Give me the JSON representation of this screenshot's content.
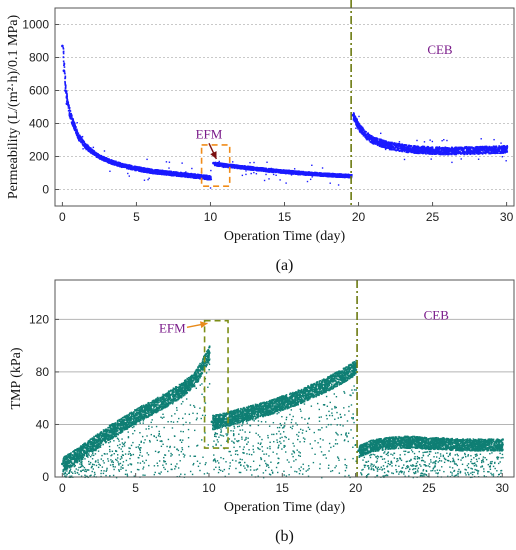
{
  "chart_data": [
    {
      "type": "scatter",
      "panel_label": "(a)",
      "xlabel": "Operation Time (day)",
      "ylabel": "Permeability (L/(m²·h)/0.1 MPa)",
      "xlim": [
        -0.5,
        30.5
      ],
      "ylim": [
        -100,
        1100
      ],
      "xticks": [
        0,
        5,
        10,
        15,
        20,
        25,
        30
      ],
      "yticks": [
        0,
        200,
        400,
        600,
        800,
        1000
      ],
      "grid": "horizontal dotted",
      "color": "#1a1aff",
      "series": [
        {
          "x": [
            0,
            0.1,
            0.2,
            0.3,
            0.5,
            0.8,
            1.0,
            1.5,
            2.0,
            2.5,
            3,
            3.5,
            4,
            5,
            6,
            7,
            8,
            9,
            10
          ],
          "values": [
            870,
            720,
            600,
            520,
            450,
            380,
            330,
            270,
            230,
            200,
            180,
            165,
            150,
            130,
            115,
            105,
            95,
            85,
            75
          ]
        },
        {
          "x": [
            10.2,
            11,
            12,
            13,
            14,
            15,
            16,
            17,
            18,
            19,
            19.5
          ],
          "values": [
            160,
            150,
            140,
            130,
            120,
            112,
            105,
            98,
            92,
            88,
            85
          ]
        },
        {
          "x": [
            19.6,
            20,
            20.5,
            21,
            22,
            23,
            24,
            25,
            26,
            27,
            28,
            29,
            30
          ],
          "values": [
            450,
            380,
            330,
            300,
            270,
            255,
            245,
            240,
            238,
            240,
            242,
            245,
            248
          ]
        }
      ],
      "annotations": [
        {
          "text": "EFM",
          "x": 9.9,
          "y": 310
        },
        {
          "text": "CEB",
          "x": 25.5,
          "y": 820
        }
      ],
      "events": [
        {
          "type": "box",
          "x": [
            9.4,
            11.3
          ],
          "y": [
            20,
            270
          ]
        },
        {
          "type": "vline",
          "x": 19.5
        }
      ]
    },
    {
      "type": "scatter",
      "panel_label": "(b)",
      "xlabel": "Operation Time (day)",
      "ylabel": "TMP (kPa)",
      "xlim": [
        -0.5,
        30.8
      ],
      "ylim": [
        0,
        150
      ],
      "xticks": [
        0,
        5,
        10,
        15,
        20,
        25,
        30
      ],
      "yticks": [
        0,
        40,
        80,
        120
      ],
      "grid": "horizontal solid",
      "color": "#0f7f74",
      "series": [
        {
          "x": [
            0,
            1,
            2,
            3,
            4,
            5,
            6,
            7,
            8,
            9,
            9.5,
            10
          ],
          "values": [
            10,
            17,
            25,
            33,
            40,
            47,
            53,
            59,
            66,
            75,
            85,
            95
          ]
        },
        {
          "x": [
            10.2,
            11,
            12,
            13,
            14,
            15,
            16,
            17,
            18,
            19,
            20
          ],
          "values": [
            42,
            44,
            47,
            50,
            53,
            57,
            61,
            66,
            71,
            77,
            84
          ]
        },
        {
          "x": [
            20.2,
            21,
            22,
            23,
            24,
            25,
            26,
            27,
            28,
            29,
            30
          ],
          "values": [
            20,
            24,
            26,
            27,
            27,
            26,
            26,
            25,
            25,
            25,
            25
          ]
        }
      ],
      "annotations": [
        {
          "text": "EFM",
          "x": 7.5,
          "y": 110
        },
        {
          "text": "CEB",
          "x": 25.5,
          "y": 120
        }
      ],
      "events": [
        {
          "type": "box",
          "x": [
            9.7,
            11.3
          ],
          "y": [
            22,
            119
          ]
        },
        {
          "type": "vline",
          "x": 20.1
        }
      ]
    }
  ]
}
